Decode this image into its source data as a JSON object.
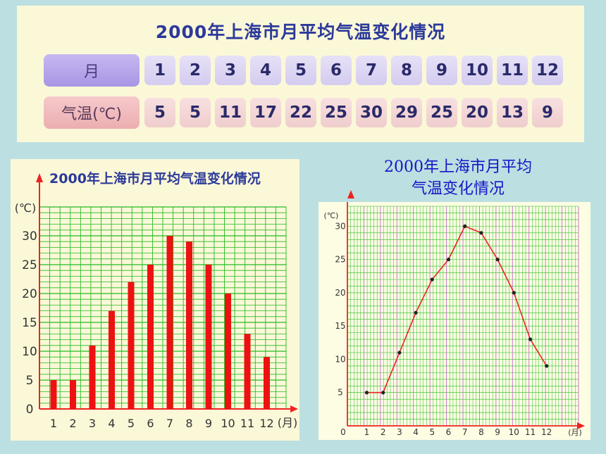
{
  "table": {
    "title": "2000年上海市月平均气温变化情况",
    "month_header": "月",
    "temp_header": "气温(℃)",
    "months": [
      "1",
      "2",
      "3",
      "4",
      "5",
      "6",
      "7",
      "8",
      "9",
      "10",
      "11",
      "12"
    ],
    "temps": [
      "5",
      "5",
      "11",
      "17",
      "22",
      "25",
      "30",
      "29",
      "25",
      "20",
      "13",
      "9"
    ]
  },
  "line_title": [
    "2000年上海市月平均",
    "气温变化情况"
  ],
  "chart_data": [
    {
      "type": "bar",
      "title": "2000年上海市月平均气温变化情况",
      "ylabel": "(℃)",
      "xlabel": "(月)",
      "categories": [
        "1",
        "2",
        "3",
        "4",
        "5",
        "6",
        "7",
        "8",
        "9",
        "10",
        "11",
        "12"
      ],
      "values": [
        5,
        5,
        11,
        17,
        22,
        25,
        30,
        29,
        25,
        20,
        13,
        9
      ],
      "ylim": [
        0,
        35
      ],
      "yticks": [
        "0",
        "5",
        "10",
        "15",
        "20",
        "25",
        "30"
      ],
      "grid": true,
      "color": "#ee1111",
      "grid_color": "#22bb22"
    },
    {
      "type": "line",
      "title": "2000年上海市月平均气温变化情况",
      "ylabel": "(℃)",
      "xlabel": "(月)",
      "x": [
        "1",
        "2",
        "3",
        "4",
        "5",
        "6",
        "7",
        "8",
        "9",
        "10",
        "11",
        "12"
      ],
      "values": [
        5,
        5,
        11,
        17,
        22,
        25,
        30,
        29,
        25,
        20,
        13,
        9
      ],
      "ylim": [
        0,
        33
      ],
      "origin": "0",
      "yticks": [
        "5",
        "10",
        "15",
        "20",
        "25",
        "30"
      ],
      "grid": true,
      "color": "#ee2222",
      "grid_color": "#22bb22"
    }
  ]
}
